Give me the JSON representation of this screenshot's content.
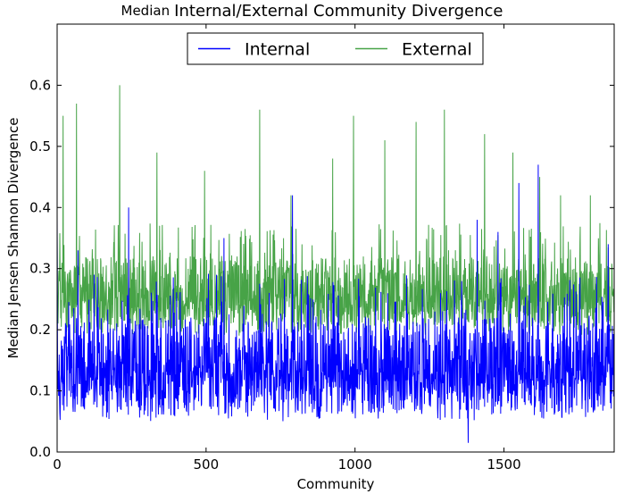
{
  "chart_data": {
    "type": "line",
    "title_prefix": "Median",
    "title": "Internal/External Community Divergence",
    "xlabel": "Community",
    "ylabel": "Median Jensen Shannon Divergence",
    "xlim": [
      0,
      1870
    ],
    "ylim": [
      0.0,
      0.7
    ],
    "x_ticks": [
      0,
      500,
      1000,
      1500
    ],
    "y_ticks": [
      0.0,
      0.1,
      0.2,
      0.3,
      0.4,
      0.5,
      0.6
    ],
    "x_tick_labels": [
      "0",
      "500",
      "1000",
      "1500"
    ],
    "y_tick_labels": [
      "0.0",
      "0.1",
      "0.2",
      "0.3",
      "0.4",
      "0.5",
      "0.6"
    ],
    "grid": false,
    "legend_position": "top-center",
    "x_count": 1870,
    "series": [
      {
        "name": "Internal",
        "color": "#0000ff",
        "typical_range": [
          0.05,
          0.22
        ],
        "median": 0.13,
        "peaks": [
          [
            0,
            0.39
          ],
          [
            70,
            0.33
          ],
          [
            240,
            0.4
          ],
          [
            560,
            0.35
          ],
          [
            790,
            0.42
          ],
          [
            1380,
            0.015
          ],
          [
            1410,
            0.38
          ],
          [
            1480,
            0.36
          ],
          [
            1550,
            0.44
          ],
          [
            1615,
            0.47
          ],
          [
            1850,
            0.34
          ]
        ]
      },
      {
        "name": "External",
        "color": "#008000",
        "typical_range": [
          0.19,
          0.32
        ],
        "median": 0.25,
        "peaks": [
          [
            20,
            0.55
          ],
          [
            65,
            0.57
          ],
          [
            210,
            0.6
          ],
          [
            335,
            0.49
          ],
          [
            495,
            0.46
          ],
          [
            680,
            0.56
          ],
          [
            785,
            0.42
          ],
          [
            925,
            0.48
          ],
          [
            995,
            0.55
          ],
          [
            1100,
            0.51
          ],
          [
            1205,
            0.54
          ],
          [
            1300,
            0.56
          ],
          [
            1435,
            0.52
          ],
          [
            1530,
            0.49
          ],
          [
            1620,
            0.45
          ],
          [
            1690,
            0.42
          ],
          [
            1790,
            0.42
          ]
        ]
      }
    ]
  }
}
